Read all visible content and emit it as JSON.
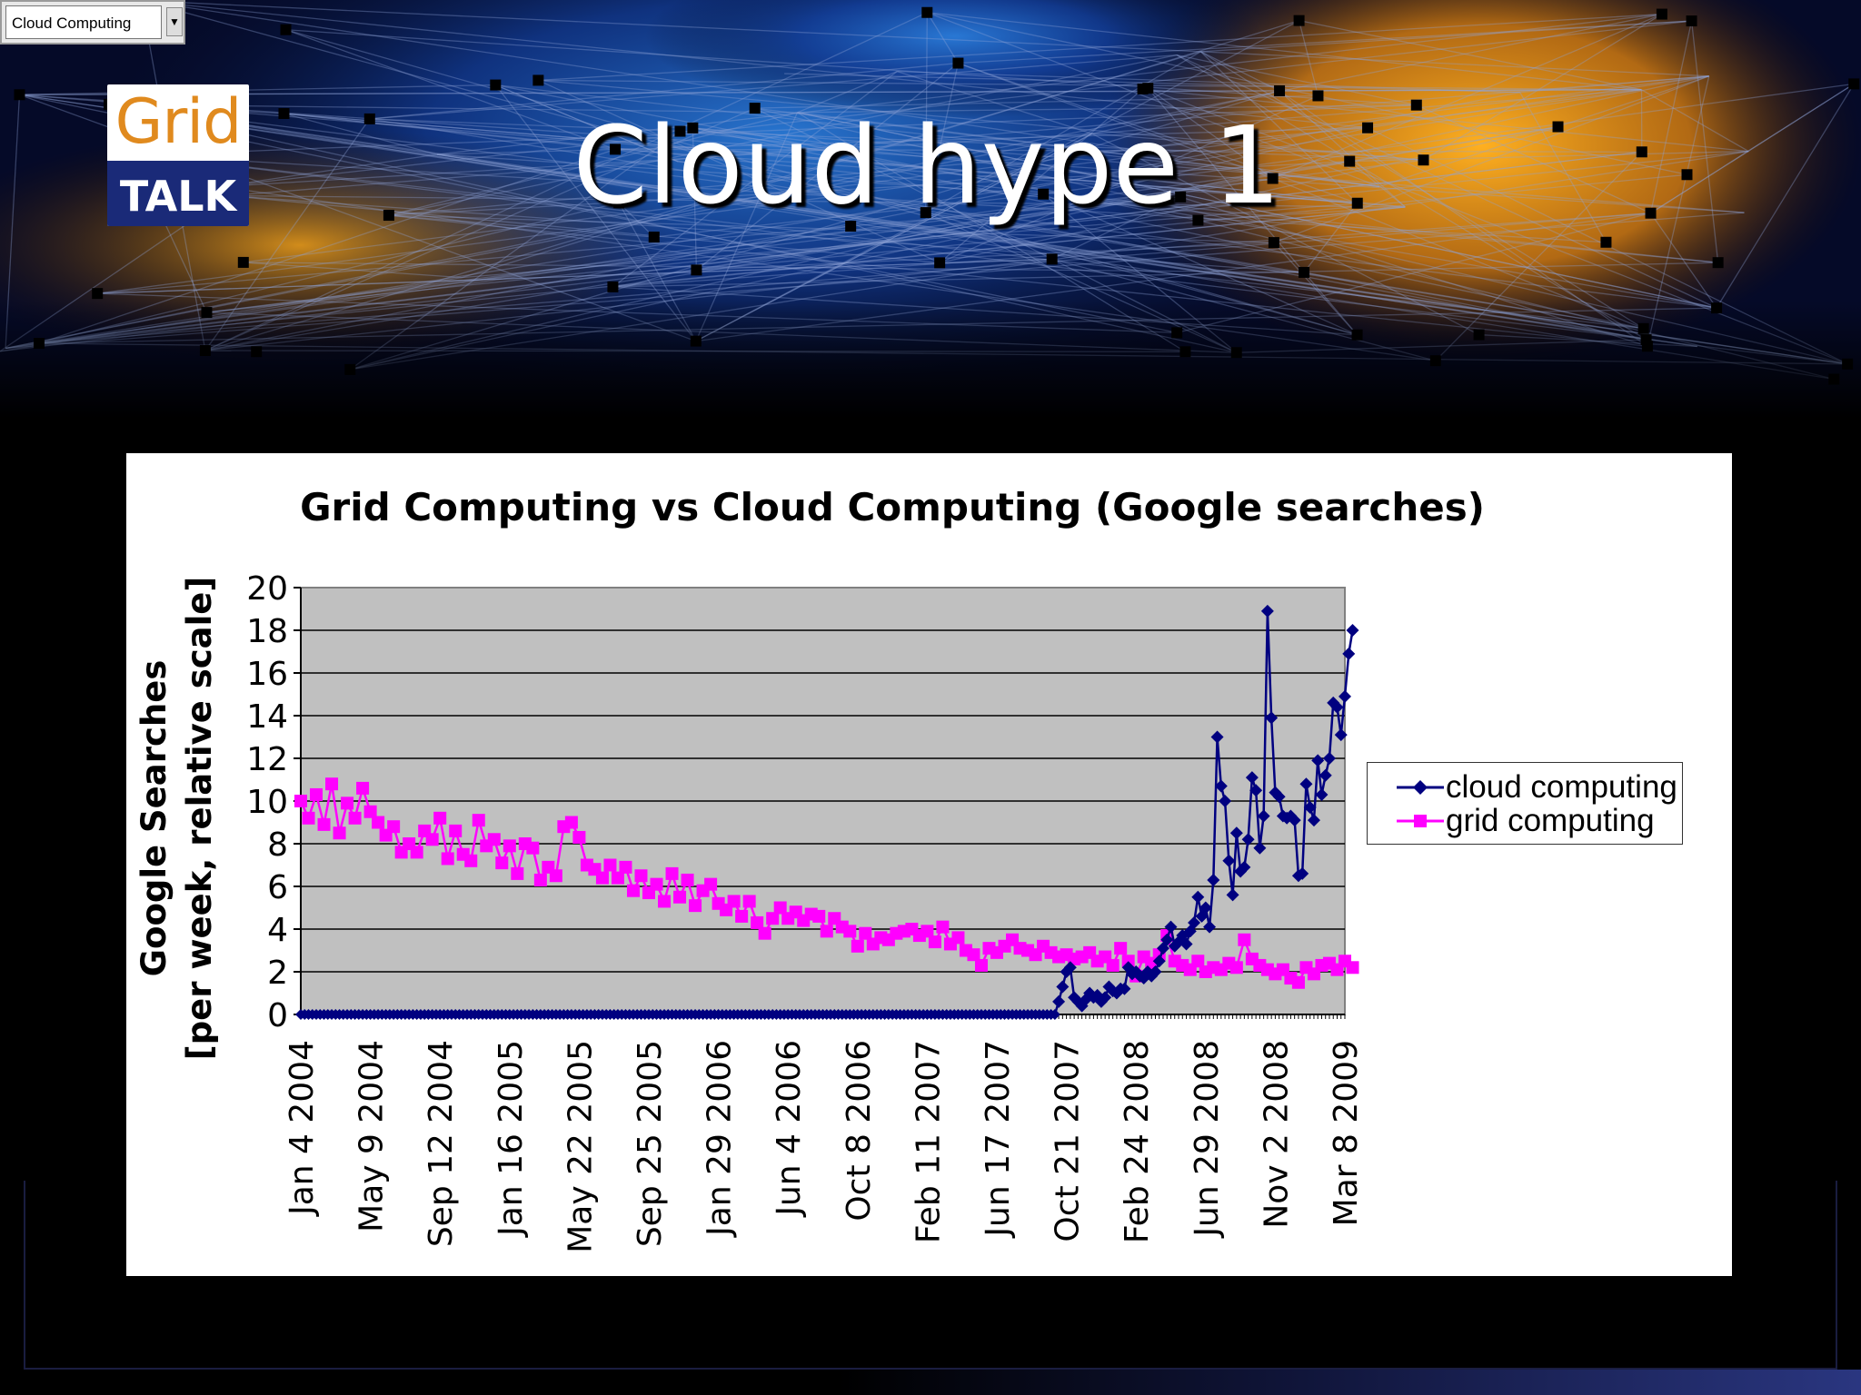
{
  "slide": {
    "title": "Cloud hype 1",
    "widget_text": "Cloud Computing"
  },
  "logo": {
    "top_text": "Grid",
    "bottom_text": "TALK"
  },
  "colors": {
    "cloud": "#000080",
    "grid": "#ff00ff",
    "plot_bg": "#c0c0c0"
  },
  "chart_data": {
    "type": "line",
    "title": "Grid Computing vs Cloud Computing (Google searches)",
    "ylabel_line1": "Google Searches",
    "ylabel_line2": "[per week, relative scale]",
    "xlabel": "",
    "ylim": [
      0,
      20
    ],
    "yticks": [
      "0",
      "2",
      "4",
      "6",
      "8",
      "10",
      "12",
      "14",
      "16",
      "18",
      "20"
    ],
    "xlim": [
      "Jan 4 2004",
      "Mar 8 2009"
    ],
    "xtick_labels": [
      "Jan 4 2004",
      "May 9 2004",
      "Sep 12 2004",
      "Jan 16 2005",
      "May 22 2005",
      "Sep 25 2005",
      "Jan 29 2006",
      "Jun 4 2006",
      "Oct 8 2006",
      "Feb 11 2007",
      "Jun 17 2007",
      "Oct 21 2007",
      "Feb 24 2008",
      "Jun 29 2008",
      "Nov 2 2008",
      "Mar 8 2009"
    ],
    "grid": true,
    "legend_position": "right",
    "series": [
      {
        "name": "cloud computing",
        "marker": "diamond",
        "points": [
          [
            "Jan 4 2004",
            0
          ],
          [
            "Sep 30 2007",
            0
          ],
          [
            "Oct 7 2007",
            0.6
          ],
          [
            "Oct 14 2007",
            1.3
          ],
          [
            "Oct 21 2007",
            2.0
          ],
          [
            "Oct 28 2007",
            2.2
          ],
          [
            "Nov 4 2007",
            0.8
          ],
          [
            "Nov 11 2007",
            0.6
          ],
          [
            "Nov 18 2007",
            0.4
          ],
          [
            "Nov 25 2007",
            0.7
          ],
          [
            "Dec 2 2007",
            1.0
          ],
          [
            "Dec 9 2007",
            0.8
          ],
          [
            "Dec 16 2007",
            0.9
          ],
          [
            "Dec 23 2007",
            0.6
          ],
          [
            "Dec 30 2007",
            0.8
          ],
          [
            "Jan 6 2008",
            1.3
          ],
          [
            "Jan 13 2008",
            1.1
          ],
          [
            "Jan 20 2008",
            1.0
          ],
          [
            "Jan 27 2008",
            1.2
          ],
          [
            "Feb 3 2008",
            1.2
          ],
          [
            "Feb 10 2008",
            2.2
          ],
          [
            "Feb 17 2008",
            1.9
          ],
          [
            "Feb 24 2008",
            2.0
          ],
          [
            "Mar 2 2008",
            1.8
          ],
          [
            "Mar 9 2008",
            1.7
          ],
          [
            "Mar 16 2008",
            2.0
          ],
          [
            "Mar 23 2008",
            1.8
          ],
          [
            "Mar 30 2008",
            2.0
          ],
          [
            "Apr 6 2008",
            2.5
          ],
          [
            "Apr 13 2008",
            3.1
          ],
          [
            "Apr 20 2008",
            3.5
          ],
          [
            "Apr 27 2008",
            4.1
          ],
          [
            "May 4 2008",
            3.2
          ],
          [
            "May 11 2008",
            3.4
          ],
          [
            "May 18 2008",
            3.7
          ],
          [
            "May 25 2008",
            3.3
          ],
          [
            "Jun 1 2008",
            3.9
          ],
          [
            "Jun 8 2008",
            4.3
          ],
          [
            "Jun 15 2008",
            5.5
          ],
          [
            "Jun 22 2008",
            4.6
          ],
          [
            "Jun 29 2008",
            5.0
          ],
          [
            "Jul 6 2008",
            4.1
          ],
          [
            "Jul 13 2008",
            6.3
          ],
          [
            "Jul 20 2008",
            13.0
          ],
          [
            "Jul 27 2008",
            10.7
          ],
          [
            "Aug 3 2008",
            10.0
          ],
          [
            "Aug 10 2008",
            7.2
          ],
          [
            "Aug 17 2008",
            5.6
          ],
          [
            "Aug 24 2008",
            8.5
          ],
          [
            "Aug 31 2008",
            6.7
          ],
          [
            "Sep 7 2008",
            6.9
          ],
          [
            "Sep 14 2008",
            8.2
          ],
          [
            "Sep 21 2008",
            11.1
          ],
          [
            "Sep 28 2008",
            10.5
          ],
          [
            "Oct 5 2008",
            7.8
          ],
          [
            "Oct 12 2008",
            9.3
          ],
          [
            "Oct 19 2008",
            18.9
          ],
          [
            "Oct 26 2008",
            13.9
          ],
          [
            "Nov 2 2008",
            10.4
          ],
          [
            "Nov 9 2008",
            10.2
          ],
          [
            "Nov 16 2008",
            9.3
          ],
          [
            "Nov 23 2008",
            9.2
          ],
          [
            "Nov 30 2008",
            9.3
          ],
          [
            "Dec 7 2008",
            9.1
          ],
          [
            "Dec 14 2008",
            6.5
          ],
          [
            "Dec 21 2008",
            6.6
          ],
          [
            "Dec 28 2008",
            10.8
          ],
          [
            "Jan 4 2009",
            9.7
          ],
          [
            "Jan 11 2009",
            9.1
          ],
          [
            "Jan 18 2009",
            11.9
          ],
          [
            "Jan 25 2009",
            10.3
          ],
          [
            "Feb 1 2009",
            11.2
          ],
          [
            "Feb 8 2009",
            12.0
          ],
          [
            "Feb 15 2009",
            14.6
          ],
          [
            "Feb 22 2009",
            14.4
          ],
          [
            "Mar 1 2009",
            13.1
          ],
          [
            "Mar 8 2009",
            14.9
          ],
          [
            "Mar 15 2009",
            16.9
          ],
          [
            "Mar 22 2009",
            18.0
          ]
        ]
      },
      {
        "name": "grid computing",
        "marker": "square",
        "points": [
          [
            "Jan 4 2004",
            10.0
          ],
          [
            "Jan 18 2004",
            9.2
          ],
          [
            "Feb 1 2004",
            10.3
          ],
          [
            "Feb 15 2004",
            8.9
          ],
          [
            "Feb 29 2004",
            10.8
          ],
          [
            "Mar 14 2004",
            8.5
          ],
          [
            "Mar 28 2004",
            9.9
          ],
          [
            "Apr 11 2004",
            9.2
          ],
          [
            "Apr 25 2004",
            10.6
          ],
          [
            "May 9 2004",
            9.5
          ],
          [
            "May 23 2004",
            9.0
          ],
          [
            "Jun 6 2004",
            8.4
          ],
          [
            "Jun 20 2004",
            8.8
          ],
          [
            "Jul 4 2004",
            7.6
          ],
          [
            "Jul 18 2004",
            8.0
          ],
          [
            "Aug 1 2004",
            7.6
          ],
          [
            "Aug 15 2004",
            8.6
          ],
          [
            "Aug 29 2004",
            8.2
          ],
          [
            "Sep 12 2004",
            9.2
          ],
          [
            "Sep 26 2004",
            7.3
          ],
          [
            "Oct 10 2004",
            8.6
          ],
          [
            "Oct 24 2004",
            7.5
          ],
          [
            "Nov 7 2004",
            7.2
          ],
          [
            "Nov 21 2004",
            9.1
          ],
          [
            "Dec 5 2004",
            7.9
          ],
          [
            "Dec 19 2004",
            8.2
          ],
          [
            "Jan 2 2005",
            7.1
          ],
          [
            "Jan 16 2005",
            7.9
          ],
          [
            "Jan 30 2005",
            6.6
          ],
          [
            "Feb 13 2005",
            8.0
          ],
          [
            "Feb 27 2005",
            7.8
          ],
          [
            "Mar 13 2005",
            6.3
          ],
          [
            "Mar 27 2005",
            6.9
          ],
          [
            "Apr 10 2005",
            6.5
          ],
          [
            "Apr 24 2005",
            8.8
          ],
          [
            "May 8 2005",
            9.0
          ],
          [
            "May 22 2005",
            8.3
          ],
          [
            "Jun 5 2005",
            7.0
          ],
          [
            "Jun 19 2005",
            6.8
          ],
          [
            "Jul 3 2005",
            6.4
          ],
          [
            "Jul 17 2005",
            7.0
          ],
          [
            "Jul 31 2005",
            6.4
          ],
          [
            "Aug 14 2005",
            6.9
          ],
          [
            "Aug 28 2005",
            5.8
          ],
          [
            "Sep 11 2005",
            6.5
          ],
          [
            "Sep 25 2005",
            5.7
          ],
          [
            "Oct 9 2005",
            6.1
          ],
          [
            "Oct 23 2005",
            5.3
          ],
          [
            "Nov 6 2005",
            6.6
          ],
          [
            "Nov 20 2005",
            5.5
          ],
          [
            "Dec 4 2005",
            6.3
          ],
          [
            "Dec 18 2005",
            5.1
          ],
          [
            "Jan 1 2006",
            5.8
          ],
          [
            "Jan 15 2006",
            6.1
          ],
          [
            "Jan 29 2006",
            5.2
          ],
          [
            "Feb 12 2006",
            4.9
          ],
          [
            "Feb 26 2006",
            5.3
          ],
          [
            "Mar 12 2006",
            4.6
          ],
          [
            "Mar 26 2006",
            5.3
          ],
          [
            "Apr 9 2006",
            4.3
          ],
          [
            "Apr 23 2006",
            3.8
          ],
          [
            "May 7 2006",
            4.5
          ],
          [
            "May 21 2006",
            5.0
          ],
          [
            "Jun 4 2006",
            4.5
          ],
          [
            "Jun 18 2006",
            4.8
          ],
          [
            "Jul 2 2006",
            4.4
          ],
          [
            "Jul 16 2006",
            4.7
          ],
          [
            "Jul 30 2006",
            4.6
          ],
          [
            "Aug 13 2006",
            3.9
          ],
          [
            "Aug 27 2006",
            4.5
          ],
          [
            "Sep 10 2006",
            4.1
          ],
          [
            "Sep 24 2006",
            3.9
          ],
          [
            "Oct 8 2006",
            3.2
          ],
          [
            "Oct 22 2006",
            3.8
          ],
          [
            "Nov 5 2006",
            3.3
          ],
          [
            "Nov 19 2006",
            3.6
          ],
          [
            "Dec 3 2006",
            3.5
          ],
          [
            "Dec 17 2006",
            3.8
          ],
          [
            "Dec 31 2006",
            3.9
          ],
          [
            "Jan 14 2007",
            4.0
          ],
          [
            "Jan 28 2007",
            3.7
          ],
          [
            "Feb 11 2007",
            3.9
          ],
          [
            "Feb 25 2007",
            3.4
          ],
          [
            "Mar 11 2007",
            4.1
          ],
          [
            "Mar 25 2007",
            3.3
          ],
          [
            "Apr 8 2007",
            3.6
          ],
          [
            "Apr 22 2007",
            3.0
          ],
          [
            "May 6 2007",
            2.8
          ],
          [
            "May 20 2007",
            2.3
          ],
          [
            "Jun 3 2007",
            3.1
          ],
          [
            "Jun 17 2007",
            2.9
          ],
          [
            "Jul 1 2007",
            3.2
          ],
          [
            "Jul 15 2007",
            3.5
          ],
          [
            "Jul 29 2007",
            3.1
          ],
          [
            "Aug 12 2007",
            3.0
          ],
          [
            "Aug 26 2007",
            2.8
          ],
          [
            "Sep 9 2007",
            3.2
          ],
          [
            "Sep 23 2007",
            2.9
          ],
          [
            "Oct 7 2007",
            2.7
          ],
          [
            "Oct 21 2007",
            2.8
          ],
          [
            "Nov 4 2007",
            2.6
          ],
          [
            "Nov 18 2007",
            2.7
          ],
          [
            "Dec 2 2007",
            2.9
          ],
          [
            "Dec 16 2007",
            2.5
          ],
          [
            "Dec 30 2007",
            2.7
          ],
          [
            "Jan 13 2008",
            2.3
          ],
          [
            "Jan 27 2008",
            3.1
          ],
          [
            "Feb 10 2008",
            2.5
          ],
          [
            "Feb 24 2008",
            1.8
          ],
          [
            "Mar 9 2008",
            2.7
          ],
          [
            "Mar 23 2008",
            2.4
          ],
          [
            "Apr 6 2008",
            2.8
          ],
          [
            "Apr 20 2008",
            3.7
          ],
          [
            "May 4 2008",
            2.5
          ],
          [
            "May 18 2008",
            2.3
          ],
          [
            "Jun 1 2008",
            2.1
          ],
          [
            "Jun 15 2008",
            2.5
          ],
          [
            "Jun 29 2008",
            2.0
          ],
          [
            "Jul 13 2008",
            2.2
          ],
          [
            "Jul 27 2008",
            2.1
          ],
          [
            "Aug 10 2008",
            2.4
          ],
          [
            "Aug 24 2008",
            2.2
          ],
          [
            "Sep 7 2008",
            3.5
          ],
          [
            "Sep 21 2008",
            2.6
          ],
          [
            "Oct 5 2008",
            2.3
          ],
          [
            "Oct 19 2008",
            2.1
          ],
          [
            "Nov 2 2008",
            1.9
          ],
          [
            "Nov 16 2008",
            2.1
          ],
          [
            "Nov 30 2008",
            1.7
          ],
          [
            "Dec 14 2008",
            1.5
          ],
          [
            "Dec 28 2008",
            2.2
          ],
          [
            "Jan 11 2009",
            1.9
          ],
          [
            "Jan 25 2009",
            2.3
          ],
          [
            "Feb 8 2009",
            2.4
          ],
          [
            "Feb 22 2009",
            2.1
          ],
          [
            "Mar 8 2009",
            2.5
          ],
          [
            "Mar 22 2009",
            2.2
          ]
        ]
      }
    ]
  }
}
